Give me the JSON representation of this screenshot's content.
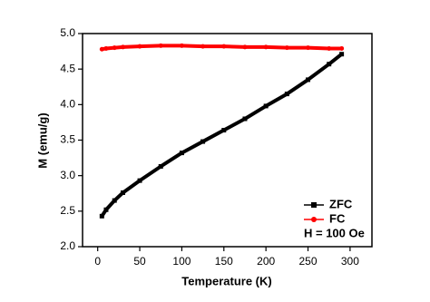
{
  "chart_data": {
    "type": "line",
    "xlabel": "Temperature (K)",
    "ylabel": "M (emu/g)",
    "x": [
      5,
      10,
      20,
      30,
      50,
      75,
      100,
      125,
      150,
      175,
      200,
      225,
      250,
      275,
      290
    ],
    "series": [
      {
        "name": "ZFC",
        "color": "#000000",
        "marker": "square",
        "values": [
          2.43,
          2.52,
          2.65,
          2.76,
          2.93,
          3.13,
          3.32,
          3.48,
          3.64,
          3.8,
          3.98,
          4.15,
          4.35,
          4.57,
          4.71
        ]
      },
      {
        "name": "FC",
        "color": "#ff0000",
        "marker": "circle",
        "values": [
          4.78,
          4.79,
          4.8,
          4.81,
          4.82,
          4.83,
          4.83,
          4.82,
          4.82,
          4.81,
          4.81,
          4.8,
          4.8,
          4.79,
          4.79
        ]
      }
    ],
    "annotation": "H = 100 Oe",
    "legend": "lower right",
    "xlim": [
      -18,
      326
    ],
    "xticks": [
      0,
      50,
      100,
      150,
      200,
      250,
      300
    ],
    "ylim": [
      2.0,
      5.0
    ],
    "yticks": [
      {
        "value": 2.0,
        "label": "2.0"
      },
      2.5,
      {
        "value": 3.0,
        "label": "3.0"
      },
      3.5,
      {
        "value": 4.0,
        "label": "4.0"
      },
      4.5,
      {
        "value": 5.0,
        "label": "5.0"
      }
    ]
  }
}
